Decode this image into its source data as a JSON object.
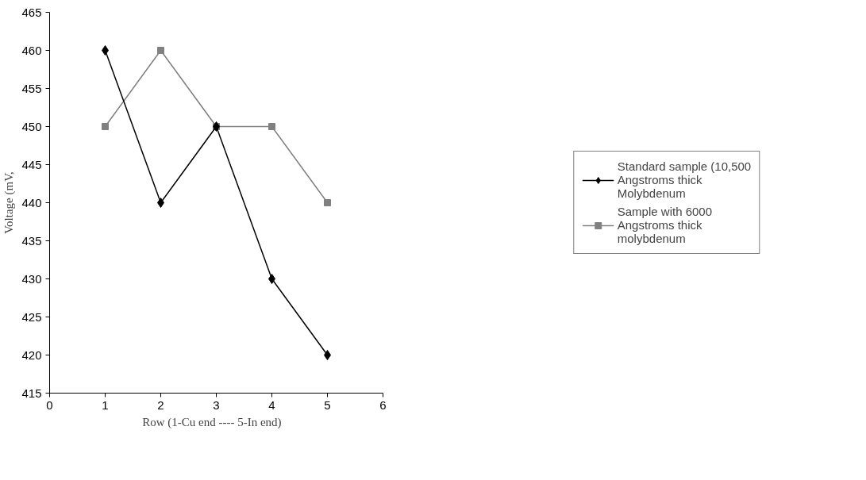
{
  "chart_data": {
    "type": "line",
    "xlabel": "Row (1-Cu end  ----   5-In end)",
    "ylabel": "Voltage (mV,",
    "x": [
      1,
      2,
      3,
      4,
      5
    ],
    "xlim": [
      0,
      6
    ],
    "xticks": [
      0,
      1,
      2,
      3,
      4,
      5,
      6
    ],
    "ylim": [
      415,
      465
    ],
    "yticks": [
      415,
      420,
      425,
      430,
      435,
      440,
      445,
      450,
      455,
      460,
      465
    ],
    "grid": false,
    "legend": "right",
    "series": [
      {
        "name": "Standard sample (10,500 Angstroms thick Molybdenum",
        "color": "#000000",
        "marker": "diamond",
        "values": [
          460,
          440,
          450,
          430,
          420
        ]
      },
      {
        "name": "Sample with 6000 Angstroms thick molybdenum",
        "color": "#808080",
        "marker": "square",
        "values": [
          450,
          460,
          450,
          450,
          440
        ]
      }
    ]
  }
}
